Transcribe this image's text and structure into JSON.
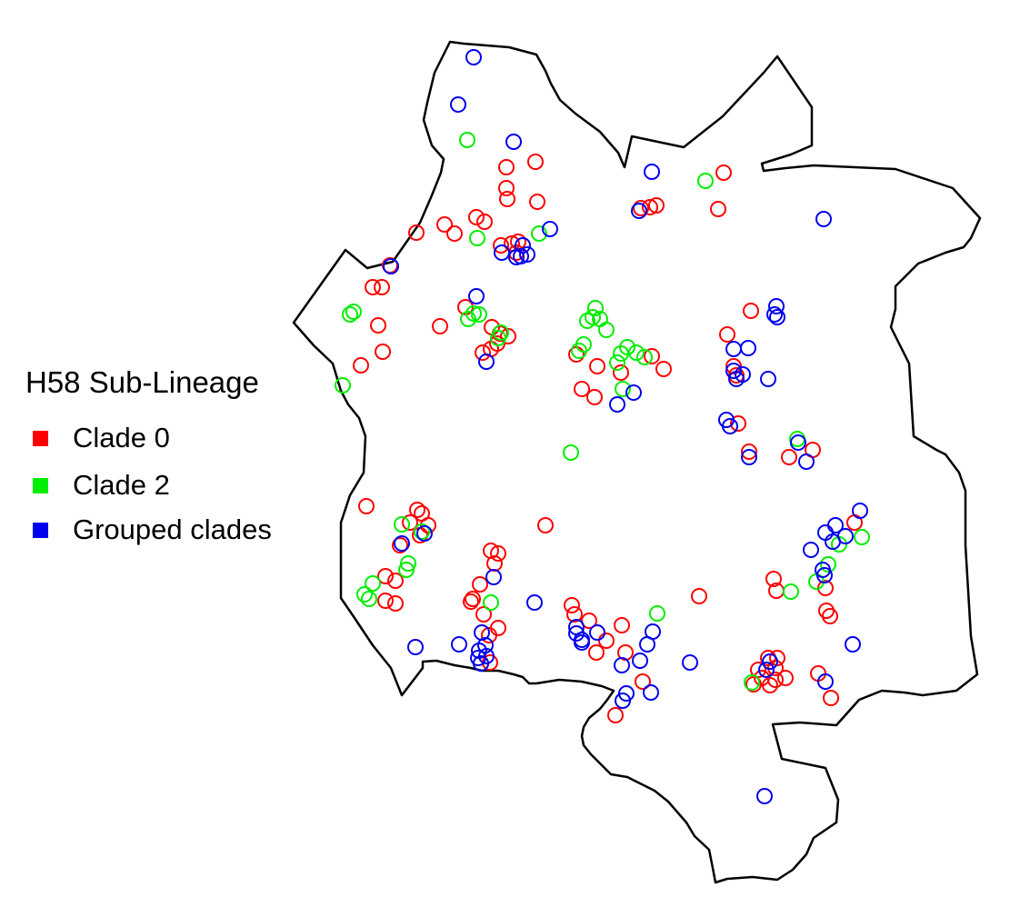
{
  "legend": {
    "title": "H58 Sub-Lineage",
    "items": [
      {
        "label": "Clade 0",
        "color": "#ff0000"
      },
      {
        "label": "Clade 2",
        "color": "#00ee00"
      },
      {
        "label": "Grouped clades",
        "color": "#0000ee"
      }
    ]
  },
  "colors": {
    "outline": "#000000",
    "background": "#ffffff"
  },
  "symbol": "open-circle",
  "points": {
    "red": [
      [
        796,
        190
      ],
      [
        790,
        230
      ],
      [
        705,
        229
      ],
      [
        715,
        228
      ],
      [
        722,
        226
      ],
      [
        557,
        184
      ],
      [
        589,
        178
      ],
      [
        557,
        207
      ],
      [
        558,
        219
      ],
      [
        591,
        222
      ],
      [
        458,
        256
      ],
      [
        489,
        247
      ],
      [
        500,
        257
      ],
      [
        524,
        239
      ],
      [
        533,
        244
      ],
      [
        570,
        266
      ],
      [
        563,
        268
      ],
      [
        551,
        270
      ],
      [
        568,
        278
      ],
      [
        429,
        292
      ],
      [
        410,
        316
      ],
      [
        420,
        316
      ],
      [
        416,
        358
      ],
      [
        421,
        387
      ],
      [
        397,
        402
      ],
      [
        484,
        359
      ],
      [
        512,
        338
      ],
      [
        541,
        360
      ],
      [
        550,
        367
      ],
      [
        559,
        370
      ],
      [
        547,
        378
      ],
      [
        540,
        384
      ],
      [
        531,
        388
      ],
      [
        634,
        390
      ],
      [
        657,
        403
      ],
      [
        683,
        410
      ],
      [
        640,
        428
      ],
      [
        654,
        437
      ],
      [
        717,
        392
      ],
      [
        730,
        406
      ],
      [
        826,
        342
      ],
      [
        800,
        368
      ],
      [
        807,
        403
      ],
      [
        810,
        413
      ],
      [
        812,
        466
      ],
      [
        824,
        497
      ],
      [
        868,
        503
      ],
      [
        894,
        495
      ],
      [
        403,
        557
      ],
      [
        459,
        561
      ],
      [
        464,
        565
      ],
      [
        451,
        575
      ],
      [
        471,
        578
      ],
      [
        462,
        589
      ],
      [
        440,
        600
      ],
      [
        600,
        578
      ],
      [
        540,
        606
      ],
      [
        548,
        609
      ],
      [
        544,
        620
      ],
      [
        528,
        643
      ],
      [
        520,
        659
      ],
      [
        518,
        662
      ],
      [
        532,
        676
      ],
      [
        548,
        691
      ],
      [
        538,
        699
      ],
      [
        424,
        634
      ],
      [
        435,
        639
      ],
      [
        424,
        661
      ],
      [
        435,
        664
      ],
      [
        851,
        637
      ],
      [
        854,
        650
      ],
      [
        940,
        575
      ],
      [
        908,
        647
      ],
      [
        909,
        672
      ],
      [
        913,
        678
      ],
      [
        769,
        656
      ],
      [
        629,
        666
      ],
      [
        632,
        676
      ],
      [
        648,
        683
      ],
      [
        684,
        688
      ],
      [
        667,
        705
      ],
      [
        688,
        718
      ],
      [
        656,
        718
      ],
      [
        707,
        750
      ],
      [
        677,
        787
      ],
      [
        845,
        724
      ],
      [
        855,
        724
      ],
      [
        853,
        735
      ],
      [
        834,
        737
      ],
      [
        838,
        746
      ],
      [
        847,
        754
      ],
      [
        864,
        746
      ],
      [
        853,
        748
      ],
      [
        829,
        753
      ],
      [
        900,
        741
      ],
      [
        914,
        768
      ],
      [
        539,
        729
      ]
    ],
    "green": [
      [
        514,
        154
      ],
      [
        776,
        199
      ],
      [
        525,
        262
      ],
      [
        593,
        257
      ],
      [
        385,
        346
      ],
      [
        389,
        343
      ],
      [
        521,
        345
      ],
      [
        527,
        346
      ],
      [
        515,
        351
      ],
      [
        551,
        366
      ],
      [
        548,
        372
      ],
      [
        655,
        339
      ],
      [
        652,
        349
      ],
      [
        660,
        351
      ],
      [
        646,
        353
      ],
      [
        667,
        363
      ],
      [
        642,
        379
      ],
      [
        637,
        386
      ],
      [
        690,
        382
      ],
      [
        683,
        389
      ],
      [
        700,
        388
      ],
      [
        679,
        399
      ],
      [
        709,
        393
      ],
      [
        685,
        428
      ],
      [
        377,
        424
      ],
      [
        628,
        498
      ],
      [
        877,
        483
      ],
      [
        442,
        577
      ],
      [
        464,
        585
      ],
      [
        948,
        591
      ],
      [
        923,
        599
      ],
      [
        911,
        621
      ],
      [
        898,
        640
      ],
      [
        449,
        620
      ],
      [
        447,
        627
      ],
      [
        410,
        642
      ],
      [
        401,
        654
      ],
      [
        406,
        659
      ],
      [
        540,
        663
      ],
      [
        870,
        651
      ],
      [
        723,
        675
      ],
      [
        827,
        751
      ]
    ],
    "blue": [
      [
        521,
        63
      ],
      [
        504,
        115
      ],
      [
        565,
        156
      ],
      [
        717,
        189
      ],
      [
        703,
        232
      ],
      [
        906,
        241
      ],
      [
        605,
        252
      ],
      [
        575,
        270
      ],
      [
        552,
        278
      ],
      [
        580,
        280
      ],
      [
        573,
        282
      ],
      [
        430,
        293
      ],
      [
        524,
        326
      ],
      [
        852,
        346
      ],
      [
        855,
        349
      ],
      [
        807,
        384
      ],
      [
        823,
        383
      ],
      [
        535,
        398
      ],
      [
        807,
        408
      ],
      [
        810,
        417
      ],
      [
        817,
        412
      ],
      [
        845,
        417
      ],
      [
        697,
        432
      ],
      [
        679,
        445
      ],
      [
        799,
        462
      ],
      [
        803,
        469
      ],
      [
        878,
        487
      ],
      [
        887,
        508
      ],
      [
        824,
        503
      ],
      [
        946,
        562
      ],
      [
        919,
        578
      ],
      [
        908,
        586
      ],
      [
        930,
        590
      ],
      [
        916,
        596
      ],
      [
        892,
        605
      ],
      [
        905,
        627
      ],
      [
        907,
        633
      ],
      [
        467,
        587
      ],
      [
        442,
        598
      ],
      [
        543,
        635
      ],
      [
        588,
        663
      ],
      [
        530,
        696
      ],
      [
        634,
        690
      ],
      [
        634,
        697
      ],
      [
        640,
        707
      ],
      [
        657,
        696
      ],
      [
        718,
        695
      ],
      [
        712,
        709
      ],
      [
        640,
        704
      ],
      [
        457,
        712
      ],
      [
        505,
        709
      ],
      [
        527,
        716
      ],
      [
        534,
        710
      ],
      [
        526,
        724
      ],
      [
        529,
        730
      ],
      [
        535,
        722
      ],
      [
        847,
        728
      ],
      [
        843,
        737
      ],
      [
        938,
        709
      ],
      [
        759,
        729
      ],
      [
        689,
        763
      ],
      [
        685,
        771
      ],
      [
        684,
        732
      ],
      [
        704,
        727
      ],
      [
        716,
        762
      ],
      [
        908,
        750
      ],
      [
        841,
        876
      ],
      [
        854,
        337
      ],
      [
        568,
        283
      ]
    ]
  }
}
